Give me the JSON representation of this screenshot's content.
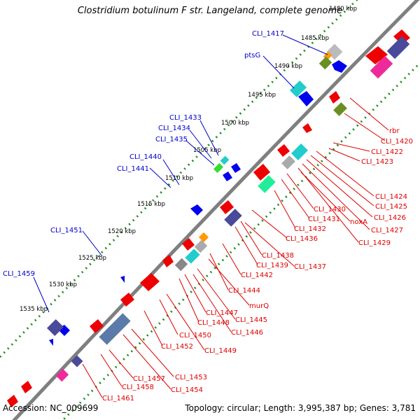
{
  "title": "Clostridium botulinum F str. Langeland, complete genome",
  "footer": {
    "accession": "Accession: NC_009699",
    "topology": "Topology: circular; Length: 3,995,387 bp; Genes: 3,781"
  },
  "kbp_ticks": [
    "1480 kbp",
    "1485 kbp",
    "1490 kbp",
    "1495 kbp",
    "1500 kbp",
    "1505 kbp",
    "1510 kbp",
    "1515 kbp",
    "1520 kbp",
    "1525 kbp",
    "1530 kbp",
    "1535 kbp"
  ],
  "gene_labels_blue": [
    "CLI_1417",
    "ptsG",
    "CLI_1433",
    "CLI_1434",
    "CLI_1435",
    "CLI_1440",
    "CLI_1441",
    "CLI_1451",
    "CLI_1459"
  ],
  "gene_labels_red": [
    "rbr",
    "CLI_1420",
    "CLI_1422",
    "CLI_1423",
    "CLI_1424",
    "CLI_1425",
    "CLI_1426",
    "CLI_1427",
    "CLI_1429",
    "noxA",
    "CLI_1430",
    "CLI_1431",
    "CLI_1432",
    "CLI_1436",
    "CLI_1438",
    "CLI_1439",
    "CLI_1437",
    "CLI_1442",
    "CLI_1444",
    "murQ",
    "CLI_1447",
    "CLI_1448",
    "CLI_1445",
    "CLI_1446",
    "CLI_1450",
    "CLI_1452",
    "CLI_1449",
    "CLI_1453",
    "CLI_1454",
    "CLI_1457",
    "CLI_1458",
    "CLI_1461"
  ],
  "colors": {
    "backbone": "#7f7f7f",
    "dots": "#1f8a1f",
    "forward_gene": "#0000ee",
    "reverse_gene": "#ee0000",
    "blue_label": "#0000cc",
    "red_label": "#dd0000",
    "slate": "#4a4a9a",
    "cyan": "#22cccc",
    "grey": "#9a9a9a",
    "olive": "#6b8e23",
    "orange": "#ff9900",
    "magenta": "#ee2a9a"
  }
}
